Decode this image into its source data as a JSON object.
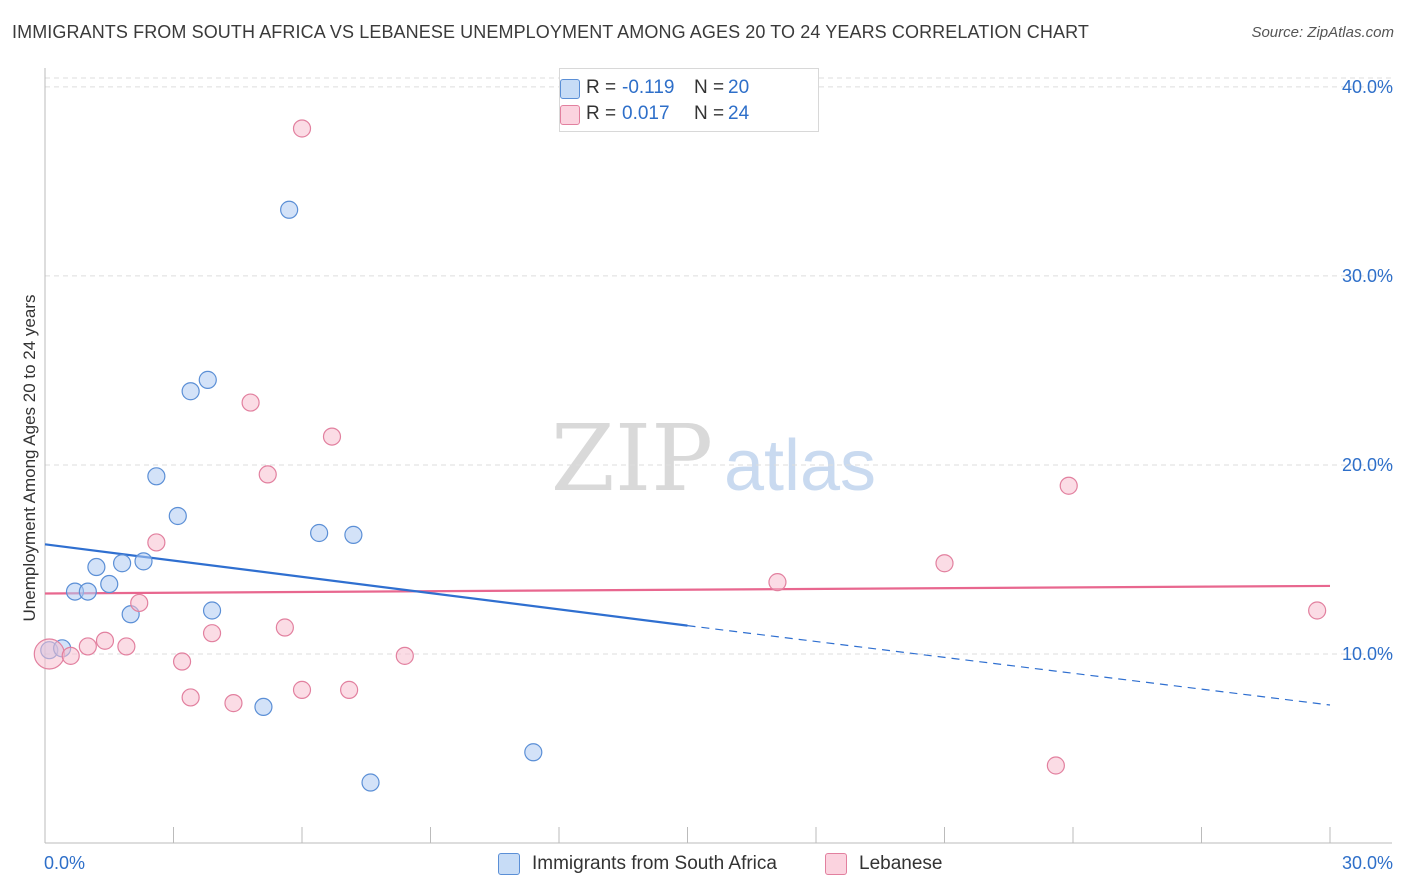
{
  "title": "IMMIGRANTS FROM SOUTH AFRICA VS LEBANESE UNEMPLOYMENT AMONG AGES 20 TO 24 YEARS CORRELATION CHART",
  "source": "Source: ZipAtlas.com",
  "watermark": {
    "zip": "ZIP",
    "atlas": "atlas"
  },
  "legend": {
    "r_label": "R =",
    "n_label": "N =",
    "rows": [
      {
        "r": "-0.119",
        "n": "20"
      },
      {
        "r": "0.017",
        "n": "24"
      }
    ]
  },
  "bottom_legend": [
    "Immigrants from South Africa",
    "Lebanese"
  ],
  "colors": {
    "blue_fill": "#aecbf2",
    "blue_stroke": "#5b8fd6",
    "blue_line": "#2f6fd0",
    "pink_fill": "#f7bfd0",
    "pink_stroke": "#e2809f",
    "pink_line": "#e8678f",
    "tick_text": "#2e6fc9",
    "grid": "#dddddd"
  },
  "chart_data": {
    "type": "scatter",
    "title": "IMMIGRANTS FROM SOUTH AFRICA VS LEBANESE UNEMPLOYMENT AMONG AGES 20 TO 24 YEARS CORRELATION CHART",
    "xlabel": "",
    "ylabel": "Unemployment Among Ages 20 to 24 years",
    "xlim": [
      0,
      30
    ],
    "ylim": [
      0,
      41
    ],
    "x_ticks": [
      "0.0%",
      "30.0%"
    ],
    "y_ticks": [
      {
        "value": 10,
        "label": "10.0%"
      },
      {
        "value": 20,
        "label": "20.0%"
      },
      {
        "value": 30,
        "label": "30.0%"
      },
      {
        "value": 40,
        "label": "40.0%"
      }
    ],
    "grid": true,
    "legend_position": "top-center",
    "series": [
      {
        "name": "Immigrants from South Africa",
        "points": [
          [
            0.1,
            10.2
          ],
          [
            0.4,
            10.3
          ],
          [
            0.7,
            13.3
          ],
          [
            1.0,
            13.3
          ],
          [
            1.2,
            14.6
          ],
          [
            1.5,
            13.7
          ],
          [
            1.8,
            14.8
          ],
          [
            2.0,
            12.1
          ],
          [
            2.3,
            14.9
          ],
          [
            2.6,
            19.4
          ],
          [
            3.1,
            17.3
          ],
          [
            3.4,
            23.9
          ],
          [
            3.8,
            24.5
          ],
          [
            3.9,
            12.3
          ],
          [
            5.1,
            7.2
          ],
          [
            5.7,
            33.5
          ],
          [
            6.4,
            16.4
          ],
          [
            7.2,
            16.3
          ],
          [
            7.6,
            3.2
          ],
          [
            11.4,
            4.8
          ]
        ],
        "trend": {
          "x0": 0,
          "y0": 15.8,
          "x1": 15.0,
          "y1": 11.5,
          "dash_x1": 30,
          "dash_y1": 7.3
        }
      },
      {
        "name": "Lebanese",
        "points": [
          [
            0.1,
            10.0
          ],
          [
            0.6,
            9.9
          ],
          [
            1.0,
            10.4
          ],
          [
            1.4,
            10.7
          ],
          [
            1.9,
            10.4
          ],
          [
            2.2,
            12.7
          ],
          [
            2.6,
            15.9
          ],
          [
            3.2,
            9.6
          ],
          [
            3.4,
            7.7
          ],
          [
            3.9,
            11.1
          ],
          [
            4.4,
            7.4
          ],
          [
            4.8,
            23.3
          ],
          [
            5.2,
            19.5
          ],
          [
            5.6,
            11.4
          ],
          [
            6.0,
            8.1
          ],
          [
            6.0,
            37.8
          ],
          [
            6.7,
            21.5
          ],
          [
            7.1,
            8.1
          ],
          [
            8.4,
            9.9
          ],
          [
            17.1,
            13.8
          ],
          [
            21.0,
            14.8
          ],
          [
            23.6,
            4.1
          ],
          [
            23.9,
            18.9
          ],
          [
            29.7,
            12.3
          ]
        ],
        "trend": {
          "x0": 0,
          "y0": 13.2,
          "x1": 30,
          "y1": 13.6
        }
      }
    ]
  }
}
